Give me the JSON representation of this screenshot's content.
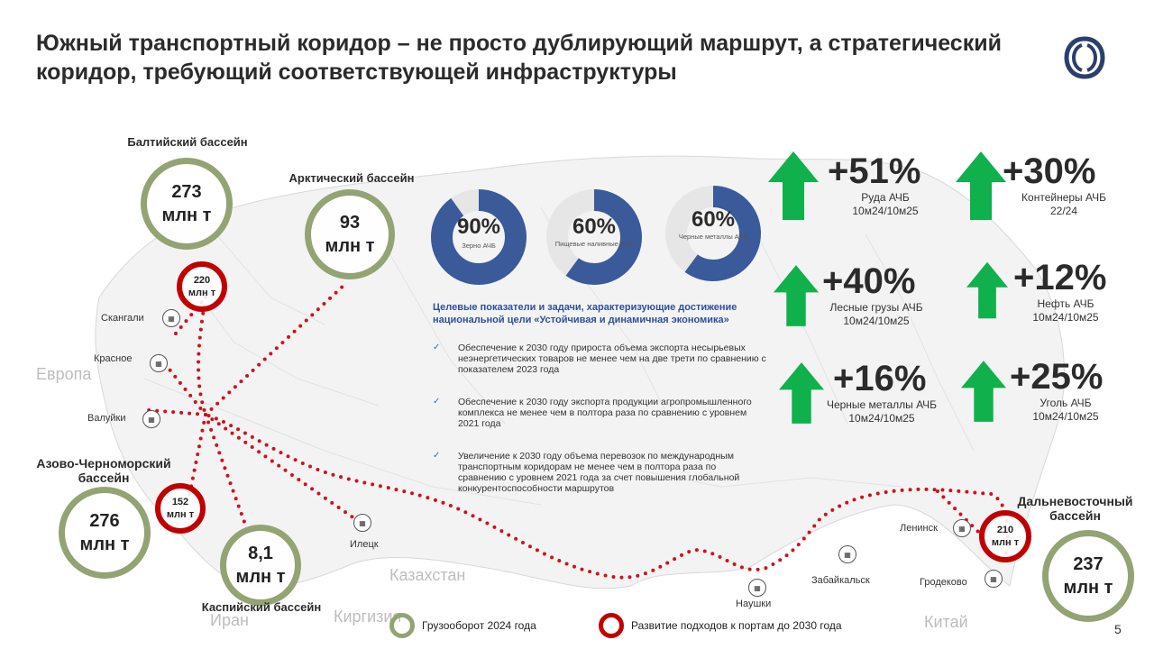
{
  "title": "Южный транспортный коридор – не просто дублирующий маршрут, а стратегический коридор, требующий соответствующей инфраструктуры",
  "regions": {
    "europe": "Европа",
    "kazakhstan": "Казахстан",
    "kyrgyzstan": "Киргизия",
    "iran": "Иран",
    "china": "Китай"
  },
  "basins": {
    "baltic": {
      "name": "Балтийский бассейн",
      "volume_value": "273",
      "volume_unit": "млн т",
      "develop_value": "220",
      "develop_unit": "млн т"
    },
    "arctic": {
      "name": "Арктический бассейн",
      "volume_value": "93",
      "volume_unit": "млн т"
    },
    "azov": {
      "name": "Азово-Черноморский бассейн",
      "volume_value": "276",
      "volume_unit": "млн т",
      "develop_value": "152",
      "develop_unit": "млн т"
    },
    "caspian": {
      "name": "Каспийский бассейн",
      "volume_value": "8,1",
      "volume_unit": "млн т"
    },
    "far_east": {
      "name": "Дальневосточный бассейн",
      "volume_value": "237",
      "volume_unit": "млн т",
      "develop_value": "210",
      "develop_unit": "млн т"
    }
  },
  "stations": {
    "skangali": "Скангали",
    "krasnoe": "Красное",
    "valuyki": "Валуйки",
    "iletsk": "Илецк",
    "naushki": "Наушки",
    "zabaikalsk": "Забайкальск",
    "leninsk": "Ленинск",
    "grodekovo": "Гродеково"
  },
  "chart_data": [
    {
      "type": "pie",
      "title": "",
      "slices": [
        {
          "label": "Зерно АЧБ",
          "value": 90
        },
        {
          "label": "",
          "value": 10
        }
      ],
      "center_text": "90%"
    },
    {
      "type": "pie",
      "title": "",
      "slices": [
        {
          "label": "Пищевые наливные АЧБ",
          "value": 60
        },
        {
          "label": "",
          "value": 40
        }
      ],
      "center_text": "60%"
    },
    {
      "type": "pie",
      "title": "",
      "slices": [
        {
          "label": "Черные металлы АЧБ",
          "value": 60
        },
        {
          "label": "",
          "value": 40
        }
      ],
      "center_text": "60%"
    }
  ],
  "donuts": [
    {
      "pct": "90%",
      "label": "Зерно АЧБ",
      "value": 90
    },
    {
      "pct": "60%",
      "label": "Пищевые наливные АЧБ",
      "value": 60
    },
    {
      "pct": "60%",
      "label": "Черные металлы АЧБ",
      "value": 60
    }
  ],
  "tasks": {
    "heading": "Целевые показатели и задачи, характеризующие достижение национальной цели «Устойчивая и динамичная экономика»",
    "items": [
      "Обеспечение к 2030 году прироста объема экспорта несырьевых неэнергетических товаров не менее чем на две трети по сравнению с показателем 2023 года",
      "Обеспечение к 2030 году экспорта продукции агропромышленного комплекса не менее чем в полтора раза по сравнению с уровнем 2021 года",
      "Увеличение к 2030 году объема перевозок по международным транспортным коридорам не менее чем в полтора раза по сравнению с уровнем 2021 года за счет повышения глобальной конкурентоспособности маршрутов"
    ]
  },
  "kpis": [
    {
      "pct": "+51%",
      "label1": "Руда АЧБ",
      "label2": "10м24/10м25"
    },
    {
      "pct": "+30%",
      "label1": "Контейнеры АЧБ",
      "label2": "22/24"
    },
    {
      "pct": "+40%",
      "label1": "Лесные грузы АЧБ",
      "label2": "10м24/10м25"
    },
    {
      "pct": "+12%",
      "label1": "Нефть АЧБ",
      "label2": "10м24/10м25"
    },
    {
      "pct": "+16%",
      "label1": "Черные металлы АЧБ",
      "label2": "10м24/10м25"
    },
    {
      "pct": "+25%",
      "label1": "Уголь АЧБ",
      "label2": "10м24/10м25"
    }
  ],
  "legend": {
    "volume": "Грузооборот 2024 года",
    "develop": "Развитие подходов к портам до 2030 года"
  },
  "page_number": "5",
  "colors": {
    "volume_ring": "#93a374",
    "develop_ring": "#c00000",
    "donut_fill": "#3b5a9a",
    "donut_track": "#e6e6e6",
    "arrow": "#10b04c",
    "route": "#d0101b",
    "heading_blue": "#2f4f9a"
  }
}
